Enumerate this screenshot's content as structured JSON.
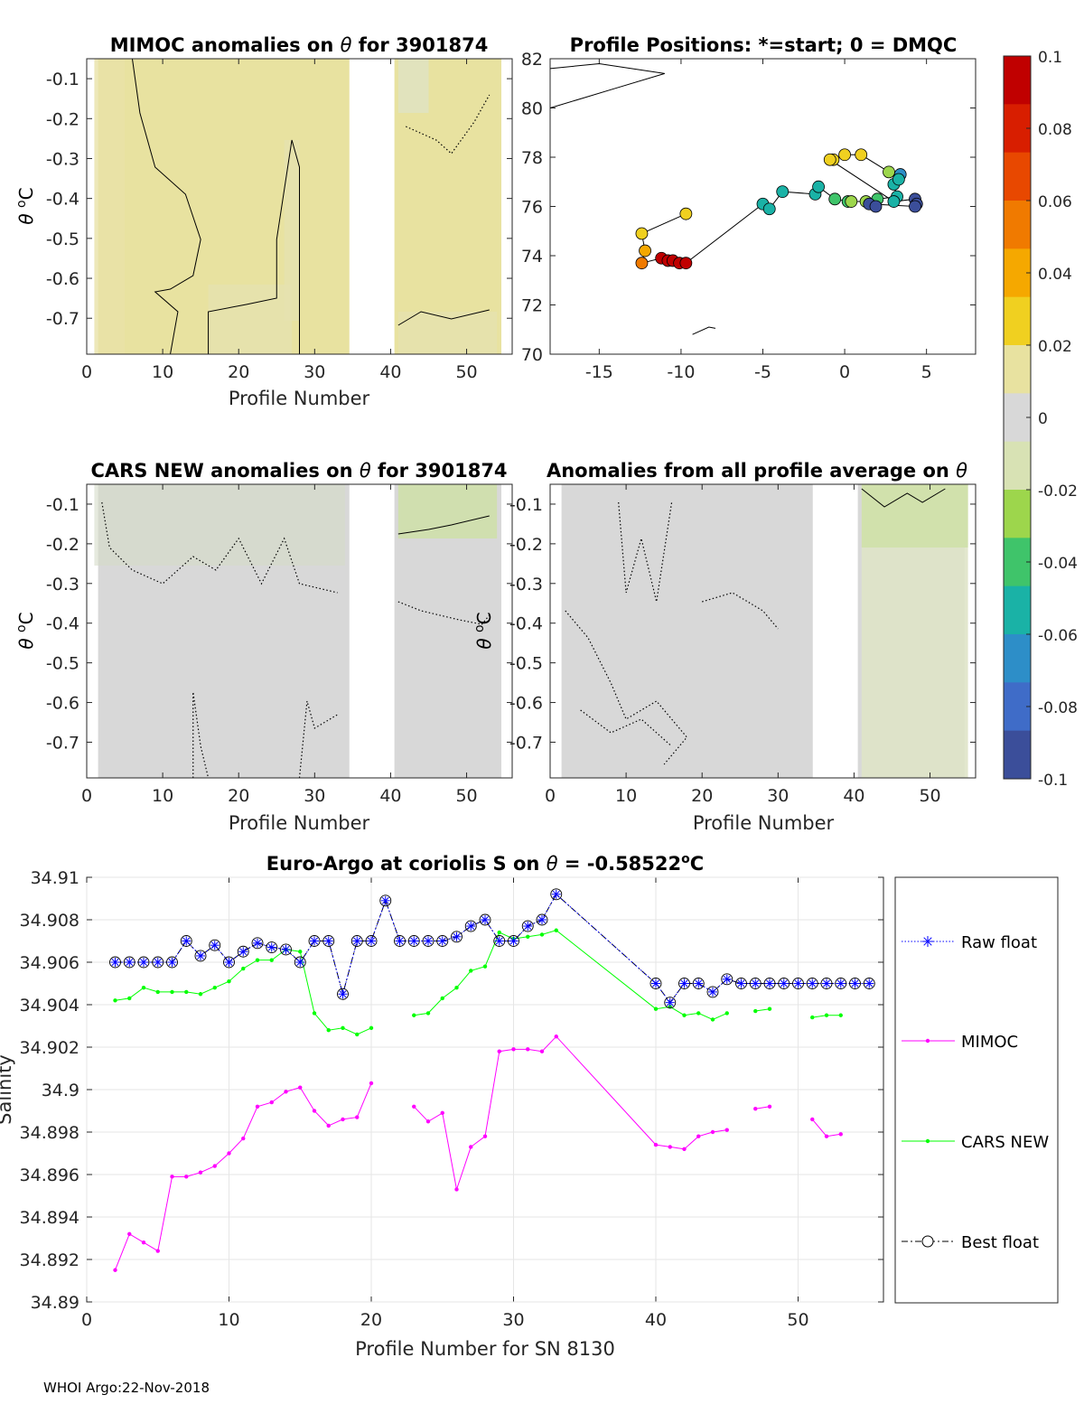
{
  "footer": "WHOI Argo:22-Nov-2018",
  "colorbar": {
    "ticks": [
      "0.1",
      "0.08",
      "0.06",
      "0.04",
      "0.02",
      "0",
      "-0.02",
      "-0.04",
      "-0.06",
      "-0.08",
      "-0.1"
    ],
    "min": -0.1,
    "max": 0.1,
    "colors": [
      "#3b4e9a",
      "#3f6cc8",
      "#2d8ec8",
      "#1ab2a6",
      "#3fc46a",
      "#9dd64c",
      "#d8e2b4",
      "#d8d8d8",
      "#e8e2a0",
      "#f0d020",
      "#f5a800",
      "#f07a00",
      "#e84800",
      "#d81e00",
      "#c00000"
    ]
  },
  "chart_data": [
    {
      "type": "heatmap",
      "title": "MIMOC anomalies on θ  for 3901874",
      "title_prefix": "MIMOC anomalies on ",
      "title_theta": "θ",
      "title_suffix": "  for 3901874",
      "xlabel": "Profile Number",
      "ylabel": "θ °C",
      "xlim": [
        0,
        56
      ],
      "ylim": [
        -0.79,
        -0.05
      ],
      "xticks": [
        "0",
        "10",
        "20",
        "30",
        "40",
        "50"
      ],
      "yticks": [
        "-0.1",
        "-0.2",
        "-0.3",
        "-0.4",
        "-0.5",
        "-0.6",
        "-0.7"
      ],
      "missing_profiles": [
        35,
        36,
        37,
        38,
        39,
        40
      ],
      "dominant_anomaly": 0.01
    },
    {
      "type": "scatter",
      "title": "Profile Positions: *=start; 0 = DMQC",
      "xlabel": "",
      "ylabel": "",
      "xlim": [
        -18,
        8
      ],
      "ylim": [
        70,
        82
      ],
      "xticks": [
        "-15",
        "-10",
        "-5",
        "0",
        "5"
      ],
      "yticks": [
        "82",
        "80",
        "78",
        "76",
        "74",
        "72",
        "70"
      ],
      "lon": [
        -9.7,
        -12.4,
        -12.2,
        -12.4,
        -11.2,
        -10.8,
        -10.5,
        -10.1,
        -9.7,
        -5.0,
        -4.6,
        -3.8,
        -1.8,
        -1.6,
        -0.6,
        0.2,
        0.4,
        1.3,
        2.0,
        3.2,
        3.0,
        3.4,
        3.3,
        2.7,
        1.0,
        0.0,
        -0.7,
        -0.9,
        3.0,
        4.3,
        4.4,
        4.3,
        1.5,
        1.9
      ],
      "lat": [
        75.7,
        74.9,
        74.2,
        73.7,
        73.9,
        73.8,
        73.8,
        73.7,
        73.7,
        76.1,
        75.9,
        76.6,
        76.5,
        76.8,
        76.3,
        76.2,
        76.2,
        76.2,
        76.3,
        76.4,
        76.9,
        77.3,
        77.1,
        77.4,
        78.1,
        78.1,
        77.9,
        77.9,
        76.2,
        76.3,
        76.1,
        76.0,
        76.1,
        76.0
      ],
      "anomaly": [
        0.03,
        0.03,
        0.04,
        0.05,
        0.09,
        0.09,
        0.09,
        0.09,
        0.09,
        -0.05,
        -0.05,
        -0.05,
        -0.06,
        -0.06,
        -0.04,
        -0.04,
        -0.03,
        -0.03,
        -0.04,
        -0.06,
        -0.05,
        -0.07,
        -0.06,
        -0.02,
        0.02,
        0.02,
        0.02,
        0.02,
        -0.05,
        -0.09,
        -0.09,
        -0.09,
        -0.09,
        -0.09
      ]
    },
    {
      "type": "heatmap",
      "title": "CARS NEW anomalies on θ for 3901874",
      "title_prefix": "CARS NEW anomalies on ",
      "title_theta": "θ",
      "title_suffix": " for 3901874",
      "xlabel": "Profile Number",
      "ylabel": "θ °C",
      "xlim": [
        0,
        56
      ],
      "ylim": [
        -0.79,
        -0.05
      ],
      "xticks": [
        "0",
        "10",
        "20",
        "30",
        "40",
        "50"
      ],
      "yticks": [
        "-0.1",
        "-0.2",
        "-0.3",
        "-0.4",
        "-0.5",
        "-0.6",
        "-0.7"
      ],
      "missing_profiles": [
        35,
        36,
        37,
        38,
        39,
        40
      ],
      "dominant_anomaly": 0.0
    },
    {
      "type": "heatmap",
      "title": "Anomalies from all profile average on θ",
      "title_prefix": "Anomalies from all profile average on ",
      "title_theta": "θ",
      "title_suffix": "",
      "xlabel": "Profile Number",
      "ylabel": "θ °C",
      "xlim": [
        0,
        56
      ],
      "ylim": [
        -0.79,
        -0.05
      ],
      "xticks": [
        "0",
        "10",
        "20",
        "30",
        "40",
        "50"
      ],
      "yticks": [
        "-0.1",
        "-0.2",
        "-0.3",
        "-0.4",
        "-0.5",
        "-0.6",
        "-0.7"
      ],
      "missing_profiles": [
        35,
        36,
        37,
        38,
        39,
        40
      ],
      "dominant_anomaly": 0.0
    },
    {
      "type": "line",
      "title": "Euro-Argo at coriolis S on θ = -0.58522°C",
      "title_prefix": "Euro-Argo at coriolis S on ",
      "title_theta": "θ",
      "title_value": " = -0.58522",
      "title_deg": "o",
      "title_unit": "C",
      "xlabel": "Profile Number for SN 8130",
      "ylabel": "Salinity",
      "xlim": [
        0,
        56
      ],
      "ylim": [
        34.89,
        34.91
      ],
      "xticks": [
        "0",
        "10",
        "20",
        "30",
        "40",
        "50"
      ],
      "yticks": [
        "34.91",
        "34.908",
        "34.906",
        "34.904",
        "34.902",
        "34.9",
        "34.898",
        "34.896",
        "34.894",
        "34.892",
        "34.89"
      ],
      "series": [
        {
          "name": "Raw float",
          "x": [
            2,
            3,
            4,
            5,
            6,
            7,
            8,
            9,
            10,
            11,
            12,
            13,
            14,
            15,
            16,
            17,
            18,
            19,
            20,
            21,
            22,
            23,
            24,
            25,
            26,
            27,
            28,
            29,
            30,
            31,
            32,
            33,
            40,
            41,
            42,
            43,
            44,
            45,
            46,
            47,
            48,
            49,
            50,
            51,
            52,
            53,
            54,
            55
          ],
          "y": [
            34.906,
            34.906,
            34.906,
            34.906,
            34.906,
            34.907,
            34.9063,
            34.9068,
            34.906,
            34.9065,
            34.9069,
            34.9067,
            34.9066,
            34.906,
            34.907,
            34.907,
            34.9045,
            34.907,
            34.907,
            34.9089,
            34.907,
            34.907,
            34.907,
            34.907,
            34.9072,
            34.9077,
            34.908,
            34.907,
            34.907,
            34.9077,
            34.908,
            34.9092,
            34.905,
            34.9041,
            34.905,
            34.905,
            34.9046,
            34.9052,
            34.905,
            34.905,
            34.905,
            34.905,
            34.905,
            34.905,
            34.905,
            34.905,
            34.905,
            34.905
          ]
        },
        {
          "name": "MIMOC",
          "x": [
            2,
            3,
            4,
            5,
            6,
            7,
            8,
            9,
            10,
            11,
            12,
            13,
            14,
            15,
            16,
            17,
            18,
            19,
            20,
            null,
            23,
            24,
            25,
            26,
            27,
            28,
            29,
            30,
            31,
            32,
            33,
            40,
            41,
            42,
            43,
            44,
            45,
            null,
            47,
            48,
            null,
            51,
            52,
            53
          ],
          "y": [
            34.8915,
            34.8932,
            34.8928,
            34.8924,
            34.8959,
            34.8959,
            34.8961,
            34.8964,
            34.897,
            34.8977,
            34.8992,
            34.8994,
            34.8999,
            34.9001,
            34.899,
            34.8983,
            34.8986,
            34.8987,
            34.9003,
            null,
            34.8992,
            34.8985,
            34.8989,
            34.8953,
            34.8973,
            34.8978,
            34.9018,
            34.9019,
            34.9019,
            34.9018,
            34.9025,
            34.8974,
            34.8973,
            34.8972,
            34.8978,
            34.898,
            34.8981,
            null,
            34.8991,
            34.8992,
            null,
            34.8986,
            34.8978,
            34.8979
          ]
        },
        {
          "name": "CARS NEW",
          "x": [
            2,
            3,
            4,
            5,
            6,
            7,
            8,
            9,
            10,
            11,
            12,
            13,
            14,
            15,
            16,
            17,
            18,
            19,
            20,
            null,
            23,
            24,
            25,
            26,
            27,
            28,
            29,
            30,
            31,
            32,
            33,
            40,
            41,
            42,
            43,
            44,
            45,
            null,
            47,
            48,
            null,
            51,
            52,
            53
          ],
          "y": [
            34.9042,
            34.9043,
            34.9048,
            34.9046,
            34.9046,
            34.9046,
            34.9045,
            34.9048,
            34.9051,
            34.9057,
            34.9061,
            34.9061,
            34.9066,
            34.9065,
            34.9036,
            34.9028,
            34.9029,
            34.9026,
            34.9029,
            null,
            34.9035,
            34.9036,
            34.9043,
            34.9048,
            34.9056,
            34.9058,
            34.9074,
            34.9071,
            34.9072,
            34.9073,
            34.9075,
            34.9038,
            34.9039,
            34.9035,
            34.9036,
            34.9033,
            34.9036,
            null,
            34.9037,
            34.9038,
            null,
            34.9034,
            34.9035,
            34.9035
          ]
        },
        {
          "name": "Best float",
          "x": [
            2,
            3,
            4,
            5,
            6,
            7,
            8,
            9,
            10,
            11,
            12,
            13,
            14,
            15,
            16,
            17,
            18,
            19,
            20,
            21,
            22,
            23,
            24,
            25,
            26,
            27,
            28,
            29,
            30,
            31,
            32,
            33,
            40,
            41,
            42,
            43,
            44,
            45,
            46,
            47,
            48,
            49,
            50,
            51,
            52,
            53,
            54,
            55
          ],
          "y": [
            34.906,
            34.906,
            34.906,
            34.906,
            34.906,
            34.907,
            34.9063,
            34.9068,
            34.906,
            34.9065,
            34.9069,
            34.9067,
            34.9066,
            34.906,
            34.907,
            34.907,
            34.9045,
            34.907,
            34.907,
            34.9089,
            34.907,
            34.907,
            34.907,
            34.907,
            34.9072,
            34.9077,
            34.908,
            34.907,
            34.907,
            34.9077,
            34.908,
            34.9092,
            34.905,
            34.9041,
            34.905,
            34.905,
            34.9046,
            34.9052,
            34.905,
            34.905,
            34.905,
            34.905,
            34.905,
            34.905,
            34.905,
            34.905,
            34.905,
            34.905
          ]
        }
      ],
      "legend": [
        {
          "label": "Raw float",
          "marker": "*",
          "linestyle": "dotted",
          "color": "#0000ff"
        },
        {
          "label": "MIMOC",
          "marker": ".",
          "linestyle": "solid",
          "color": "#ff00ff"
        },
        {
          "label": "CARS NEW",
          "marker": ".",
          "linestyle": "solid",
          "color": "#00ff00"
        },
        {
          "label": "Best float",
          "marker": "o",
          "linestyle": "dashdot",
          "color": "#000000"
        }
      ]
    }
  ]
}
